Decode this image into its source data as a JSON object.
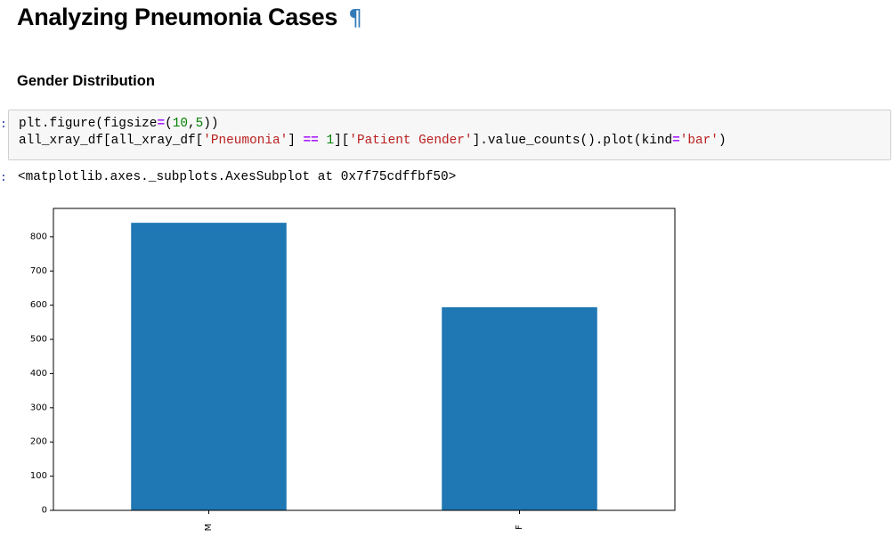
{
  "header": {
    "title": "Analyzing Pneumonia Cases",
    "anchor_symbol": "¶",
    "section_title": "Gender Distribution"
  },
  "code_cell": {
    "line1": {
      "t1": "plt.figure(figsize",
      "op1": "=",
      "t2": "(",
      "n1": "10",
      "t3": ",",
      "n2": "5",
      "t4": "))"
    },
    "line2": {
      "t1": "all_xray_df[all_xray_df[",
      "s1": "'Pneumonia'",
      "t2": "] ",
      "op1": "==",
      "t3": " ",
      "n1": "1",
      "t4": "][",
      "s2": "'Patient Gender'",
      "t5": "].value_counts().plot(kind",
      "op2": "=",
      "s3": "'bar'",
      "t6": ")"
    }
  },
  "output_text": "<matplotlib.axes._subplots.AxesSubplot at 0x7f75cdffbf50>",
  "colors": {
    "bar": "#1f77b4",
    "pilcrow": "#337ab7",
    "code_bg": "#f7f7f7"
  },
  "chart_data": {
    "type": "bar",
    "categories": [
      "M",
      "F"
    ],
    "values": [
      841,
      594
    ],
    "title": "",
    "xlabel": "",
    "ylabel": "",
    "ylim": [
      0,
      883
    ],
    "yticks": [
      0,
      100,
      200,
      300,
      400,
      500,
      600,
      700,
      800
    ],
    "grid": false,
    "legend": "none",
    "x_tick_rotation": 90
  }
}
